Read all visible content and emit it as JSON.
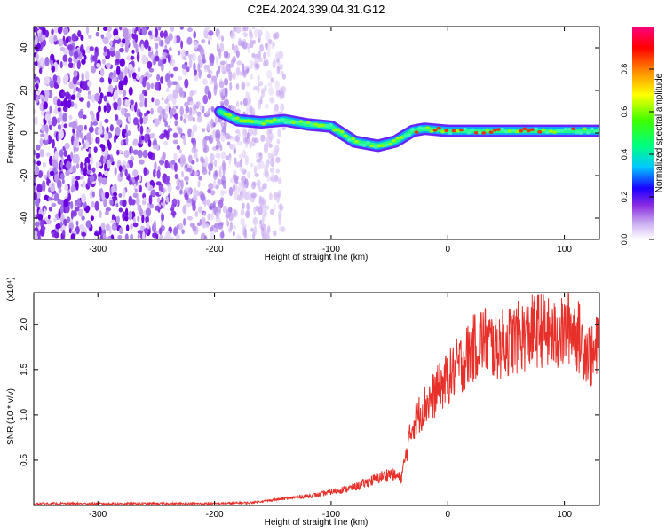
{
  "chart_data": [
    {
      "type": "heatmap",
      "title": "C2E4.2024.339.04.31.G12",
      "xlabel": "Height of straight line (km)",
      "ylabel": "Frequency (Hz)",
      "xlim": [
        -355,
        130
      ],
      "ylim": [
        -50,
        50
      ],
      "xticks": [
        -300,
        -200,
        -100,
        0,
        100
      ],
      "yticks": [
        -40,
        -20,
        0,
        20,
        40
      ],
      "colorbar": {
        "label": "Normalized spectral amplitude",
        "range": [
          0,
          1
        ],
        "ticks": [
          "0.0",
          "0.2",
          "0.4",
          "0.6",
          "0.8"
        ],
        "colormap": [
          "#ffffff",
          "#c8a8f0",
          "#8a2be2",
          "#1a00ff",
          "#00c8ff",
          "#00ff80",
          "#40ff00",
          "#ffff00",
          "#ff8000",
          "#ff0000",
          "#ff0080"
        ]
      },
      "signal_track": [
        {
          "x": -195,
          "y": 10
        },
        {
          "x": -180,
          "y": 6
        },
        {
          "x": -160,
          "y": 5
        },
        {
          "x": -140,
          "y": 6
        },
        {
          "x": -120,
          "y": 4
        },
        {
          "x": -100,
          "y": 3
        },
        {
          "x": -80,
          "y": -4
        },
        {
          "x": -60,
          "y": -6
        },
        {
          "x": -45,
          "y": -4
        },
        {
          "x": -30,
          "y": 1
        },
        {
          "x": -20,
          "y": 2
        },
        {
          "x": 0,
          "y": 1
        },
        {
          "x": 50,
          "y": 1
        },
        {
          "x": 100,
          "y": 1
        },
        {
          "x": 130,
          "y": 1
        }
      ],
      "noise_region_x": [
        -355,
        -165
      ]
    },
    {
      "type": "line",
      "xlabel": "Height of straight line (km)",
      "ylabel": "SNR (10 * v/v)",
      "y_multiplier": "(x10⁴)",
      "xlim": [
        -355,
        130
      ],
      "ylim": [
        0,
        2.35
      ],
      "xticks": [
        -300,
        -200,
        -100,
        0,
        100
      ],
      "yticks": [
        "0.5",
        "1.0",
        "1.5",
        "2.0"
      ],
      "series": [
        {
          "color": "#e8302a",
          "x": [
            -355,
            -200,
            -170,
            -150,
            -130,
            -110,
            -100,
            -80,
            -70,
            -60,
            -50,
            -40,
            -30,
            -25,
            -20,
            -10,
            0,
            10,
            20,
            30,
            40,
            50,
            60,
            70,
            80,
            90,
            100,
            105,
            110,
            120,
            125,
            130
          ],
          "y": [
            0.02,
            0.02,
            0.03,
            0.06,
            0.09,
            0.12,
            0.15,
            0.2,
            0.25,
            0.3,
            0.35,
            0.3,
            0.9,
            1.0,
            1.1,
            1.25,
            1.4,
            1.55,
            1.7,
            1.85,
            1.75,
            1.8,
            1.85,
            1.9,
            1.95,
            1.85,
            1.9,
            2.0,
            1.9,
            1.7,
            1.6,
            1.85
          ]
        }
      ]
    }
  ]
}
